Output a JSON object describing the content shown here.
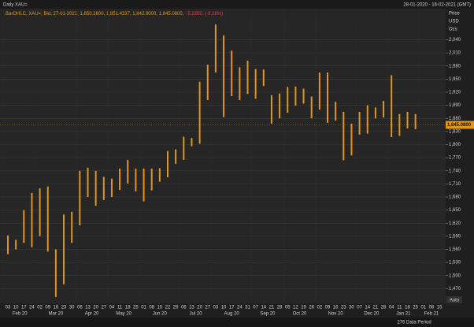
{
  "header": {
    "title": "Daily XAU=",
    "range": "28-01-2020 - 16-02-2021 (GMT)"
  },
  "status": {
    "period": "276 Data Period",
    "scale": "Auto"
  },
  "chart_data": {
    "type": "hilo",
    "legend_text": "BarOHLC, XAU=, Bid, 27-01-2021, 1,850.2600, 1,851.4337, 1,842.9000, 1,845.0800,",
    "legend_change": "-5.2300, (-0.28%)",
    "y_axis_label": [
      "Price",
      "USD",
      "Ozs"
    ],
    "categories": [
      "03",
      "10",
      "17",
      "24",
      "02",
      "09",
      "16",
      "23",
      "30",
      "06",
      "13",
      "20",
      "27",
      "04",
      "11",
      "18",
      "25",
      "01",
      "08",
      "15",
      "22",
      "29",
      "06",
      "13",
      "20",
      "27",
      "03",
      "10",
      "17",
      "24",
      "31",
      "07",
      "14",
      "21",
      "28",
      "05",
      "12",
      "19",
      "26",
      "02",
      "09",
      "16",
      "23",
      "30",
      "07",
      "14",
      "21",
      "28",
      "04",
      "11",
      "18",
      "25",
      "01",
      "08",
      "15"
    ],
    "months": [
      "Feb 20",
      "Mar 20",
      "Apr 20",
      "May 20",
      "Jun 20",
      "Jul 20",
      "Aug 20",
      "Sep 20",
      "Oct 20",
      "Nov 20",
      "Dec 20",
      "Jan 21",
      "Feb 21"
    ],
    "series": [
      {
        "name": "XAU=",
        "color": "#e0961e",
        "high": [
          1592,
          1582,
          1650,
          1689,
          1700,
          1704,
          1560,
          1640,
          1646,
          1740,
          1747,
          1740,
          1726,
          1722,
          1745,
          1765,
          1745,
          1745,
          1745,
          1746,
          1785,
          1789,
          1818,
          1815,
          1944,
          1983,
          2075,
          2050,
          2015,
          1977,
          1992,
          1973,
          1972,
          1913,
          1917,
          1932,
          1933,
          1928,
          1910,
          1965,
          1965,
          1898,
          1875,
          1848,
          1875,
          1890,
          1885,
          1900,
          1959,
          1870,
          1875,
          1870,
          null,
          null,
          null
        ],
        "low": [
          1549,
          1560,
          1575,
          1565,
          1590,
          1555,
          1451,
          1480,
          1575,
          1615,
          1680,
          1660,
          1673,
          1680,
          1696,
          1711,
          1693,
          1670,
          1695,
          1715,
          1725,
          1756,
          1765,
          1796,
          1802,
          1902,
          1965,
          1863,
          1911,
          1902,
          1916,
          1905,
          1934,
          1848,
          1860,
          1873,
          1889,
          1894,
          1860,
          1880,
          1850,
          1855,
          1764,
          1775,
          1823,
          1825,
          1860,
          1862,
          1817,
          1820,
          1837,
          1835,
          null,
          null,
          null
        ]
      }
    ],
    "last_price": {
      "value": 1845.08,
      "label": "1,845.0800"
    },
    "ylim": [
      1440,
      2095
    ],
    "yticks": [
      {
        "value": 1470,
        "label": "1,470"
      },
      {
        "value": 1500,
        "label": "1,500"
      },
      {
        "value": 1530,
        "label": "1,530"
      },
      {
        "value": 1560,
        "label": "1,560"
      },
      {
        "value": 1590,
        "label": "1,590"
      },
      {
        "value": 1620,
        "label": "1,620"
      },
      {
        "value": 1650,
        "label": "1,650"
      },
      {
        "value": 1680,
        "label": "1,680"
      },
      {
        "value": 1710,
        "label": "1,710"
      },
      {
        "value": 1740,
        "label": "1,740"
      },
      {
        "value": 1770,
        "label": "1,770"
      },
      {
        "value": 1800,
        "label": "1,800"
      },
      {
        "value": 1830,
        "label": "1,830"
      },
      {
        "value": 1860,
        "label": "1,860"
      },
      {
        "value": 1890,
        "label": "1,890"
      },
      {
        "value": 1920,
        "label": "1,920"
      },
      {
        "value": 1950,
        "label": "1,950"
      },
      {
        "value": 1980,
        "label": "1,980"
      },
      {
        "value": 2010,
        "label": "2,010"
      },
      {
        "value": 2040,
        "label": "2,040"
      }
    ],
    "grid": true
  }
}
